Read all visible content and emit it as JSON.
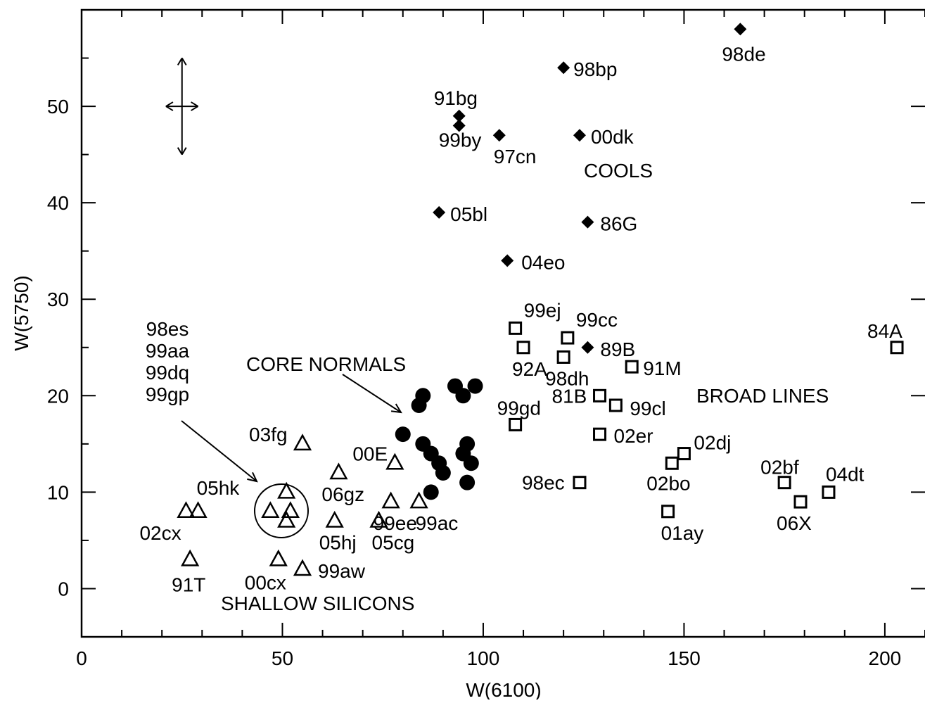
{
  "chart_data": {
    "type": "scatter",
    "xlabel": "W(6100)",
    "ylabel": "W(5750)",
    "xlim": [
      0,
      210
    ],
    "ylim": [
      -5,
      60
    ],
    "xticks": [
      0,
      50,
      100,
      150,
      200
    ],
    "yticks": [
      0,
      10,
      20,
      30,
      40,
      50
    ],
    "grid": false,
    "legend": "none",
    "series": [
      {
        "name": "COOLS",
        "marker": "filled-diamond",
        "points": [
          {
            "label": "98de",
            "x": 164,
            "y": 58
          },
          {
            "label": "98bp",
            "x": 120,
            "y": 54
          },
          {
            "label": "91bg",
            "x": 94,
            "y": 49
          },
          {
            "label": "99by",
            "x": 94,
            "y": 48
          },
          {
            "label": "97cn",
            "x": 104,
            "y": 47
          },
          {
            "label": "00dk",
            "x": 124,
            "y": 47
          },
          {
            "label": "05bl",
            "x": 89,
            "y": 39
          },
          {
            "label": "86G",
            "x": 126,
            "y": 38
          },
          {
            "label": "04eo",
            "x": 106,
            "y": 34
          },
          {
            "label": "89B",
            "x": 126,
            "y": 25
          }
        ]
      },
      {
        "name": "BROAD LINES",
        "marker": "open-square",
        "points": [
          {
            "label": "99ej",
            "x": 108,
            "y": 27
          },
          {
            "label": "92A",
            "x": 110,
            "y": 25
          },
          {
            "label": "99cc",
            "x": 121,
            "y": 26
          },
          {
            "label": "98dh",
            "x": 120,
            "y": 24
          },
          {
            "label": "91M",
            "x": 137,
            "y": 23
          },
          {
            "label": "81B",
            "x": 129,
            "y": 20
          },
          {
            "label": "99cl",
            "x": 133,
            "y": 19
          },
          {
            "label": "99gd",
            "x": 108,
            "y": 17
          },
          {
            "label": "02er",
            "x": 129,
            "y": 16
          },
          {
            "label": "02dj",
            "x": 150,
            "y": 14
          },
          {
            "label": "02bo",
            "x": 147,
            "y": 13
          },
          {
            "label": "98ec",
            "x": 124,
            "y": 11
          },
          {
            "label": "01ay",
            "x": 146,
            "y": 8
          },
          {
            "label": "02bf",
            "x": 175,
            "y": 11
          },
          {
            "label": "04dt",
            "x": 186,
            "y": 10
          },
          {
            "label": "06X",
            "x": 179,
            "y": 9
          },
          {
            "label": "84A",
            "x": 203,
            "y": 25
          }
        ]
      },
      {
        "name": "CORE NORMALS",
        "marker": "filled-circle",
        "points": [
          {
            "label": "",
            "x": 80,
            "y": 16
          },
          {
            "label": "",
            "x": 84,
            "y": 19
          },
          {
            "label": "",
            "x": 85,
            "y": 20
          },
          {
            "label": "",
            "x": 93,
            "y": 21
          },
          {
            "label": "",
            "x": 95,
            "y": 20
          },
          {
            "label": "",
            "x": 98,
            "y": 21
          },
          {
            "label": "",
            "x": 85,
            "y": 15
          },
          {
            "label": "",
            "x": 87,
            "y": 14
          },
          {
            "label": "",
            "x": 89,
            "y": 13
          },
          {
            "label": "",
            "x": 90,
            "y": 12
          },
          {
            "label": "",
            "x": 96,
            "y": 15
          },
          {
            "label": "",
            "x": 95,
            "y": 14
          },
          {
            "label": "",
            "x": 97,
            "y": 13
          },
          {
            "label": "",
            "x": 87,
            "y": 10
          },
          {
            "label": "",
            "x": 96,
            "y": 11
          }
        ]
      },
      {
        "name": "SHALLOW SILICONS",
        "marker": "open-triangle",
        "points": [
          {
            "label": "03fg",
            "x": 55,
            "y": 15
          },
          {
            "label": "00E",
            "x": 78,
            "y": 13
          },
          {
            "label": "06gz",
            "x": 64,
            "y": 12
          },
          {
            "label": "99ee",
            "x": 77,
            "y": 9
          },
          {
            "label": "99ac",
            "x": 84,
            "y": 9
          },
          {
            "label": "05hj",
            "x": 63,
            "y": 7
          },
          {
            "label": "05cg",
            "x": 74,
            "y": 7
          },
          {
            "label": "05hk",
            "x": 29,
            "y": 8
          },
          {
            "label": "02cx",
            "x": 26,
            "y": 8
          },
          {
            "label": "91T",
            "x": 27,
            "y": 3
          },
          {
            "label": "00cx",
            "x": 49,
            "y": 3
          },
          {
            "label": "99aw",
            "x": 55,
            "y": 2
          },
          {
            "label": "",
            "x": 51,
            "y": 10
          },
          {
            "label": "",
            "x": 47,
            "y": 8
          },
          {
            "label": "",
            "x": 52,
            "y": 8
          },
          {
            "label": "",
            "x": 51,
            "y": 7
          }
        ]
      }
    ],
    "annotations": {
      "group_labels": [
        "COOLS",
        "BROAD LINES",
        "CORE NORMALS",
        "SHALLOW SILICONS"
      ],
      "circled_group": [
        "98es",
        "99aa",
        "99dq",
        "99gp"
      ],
      "error_bar_center": {
        "x": 25,
        "y": 50
      },
      "error_bar_x_half": 4,
      "error_bar_y_half": 5
    }
  }
}
